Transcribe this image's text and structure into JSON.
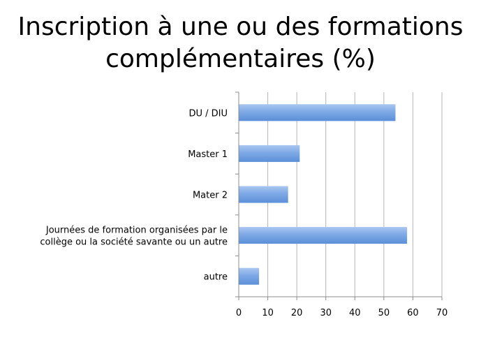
{
  "chart_data": {
    "type": "bar",
    "orientation": "horizontal",
    "title_lines": [
      "Inscription à une ou des formations",
      "complémentaires (%)"
    ],
    "categories": [
      [
        "DU / DIU"
      ],
      [
        "Master 1"
      ],
      [
        "Mater 2"
      ],
      [
        "Journées de formation organisées par le",
        "collège ou la société savante ou un autre"
      ],
      [
        "autre"
      ]
    ],
    "values": [
      54,
      21,
      17,
      58,
      7
    ],
    "xlim": [
      0,
      70
    ],
    "xticks": [
      0,
      10,
      20,
      30,
      40,
      50,
      60,
      70
    ],
    "grid": true,
    "bar_color": "#6d9de0"
  }
}
